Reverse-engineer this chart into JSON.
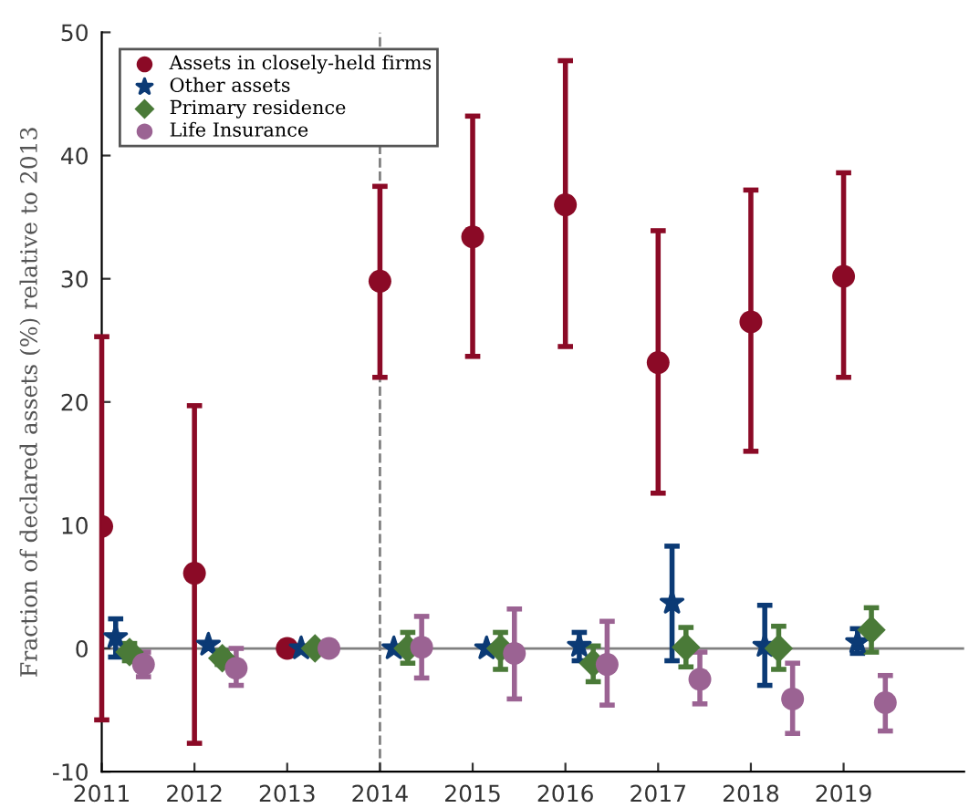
{
  "chart_data": {
    "type": "scatter",
    "ylabel": "Fraction of declared assets (%) relative to 2013",
    "xlim": [
      2011,
      2020.3
    ],
    "xticks": [
      2011,
      2012,
      2013,
      2014,
      2015,
      2016,
      2017,
      2018,
      2019
    ],
    "ylim": [
      -10,
      50
    ],
    "yticks": [
      -10,
      0,
      10,
      20,
      30,
      40,
      50
    ],
    "grid": false,
    "legend": "top left",
    "ref_lines": [
      {
        "axis": "y",
        "value": 0,
        "color": "#808080",
        "line_style": "solid"
      },
      {
        "axis": "x",
        "value": 2014,
        "color": "#808080",
        "line_style": "dashed"
      }
    ],
    "series": [
      {
        "name": "Assets in closely-held firms",
        "color": "#8b0a26",
        "marker": "circle",
        "x": [
          2011,
          2012,
          2013,
          2014,
          2015,
          2016,
          2017,
          2018,
          2019
        ],
        "values": [
          9.9,
          6.1,
          0,
          29.8,
          33.4,
          36.0,
          23.2,
          26.5,
          30.2
        ],
        "errors": [
          [
            -5.8,
            25.3
          ],
          [
            -7.7,
            19.7
          ],
          null,
          [
            22.0,
            37.5
          ],
          [
            23.7,
            43.2
          ],
          [
            24.5,
            47.7
          ],
          [
            12.6,
            33.9
          ],
          [
            16.0,
            37.2
          ],
          [
            22.0,
            38.6
          ]
        ]
      },
      {
        "name": "Other assets",
        "color": "#0b3a75",
        "marker": "star",
        "x": [
          2011.15,
          2012.15,
          2013.15,
          2014.15,
          2015.15,
          2016.15,
          2017.15,
          2018.15,
          2019.15
        ],
        "values": [
          0.9,
          0.3,
          0,
          0,
          0,
          0.2,
          3.7,
          0.2,
          0.5
        ],
        "errors": [
          [
            -0.7,
            2.4
          ],
          null,
          null,
          null,
          null,
          [
            -1.0,
            1.3
          ],
          [
            -1.0,
            8.3
          ],
          [
            -3.0,
            3.5
          ],
          [
            -0.4,
            1.6
          ]
        ]
      },
      {
        "name": "Primary residence",
        "color": "#4a7a38",
        "marker": "diamond",
        "x": [
          2011.3,
          2012.3,
          2013.3,
          2014.3,
          2015.3,
          2016.3,
          2017.3,
          2018.3,
          2019.3
        ],
        "values": [
          -0.3,
          -0.8,
          0,
          0,
          0,
          -1.2,
          0.1,
          0,
          1.5
        ],
        "errors": [
          [
            -1.0,
            0.4
          ],
          [
            -1.3,
            -0.2
          ],
          null,
          [
            -1.2,
            1.3
          ],
          [
            -1.7,
            1.3
          ],
          [
            -2.7,
            0.2
          ],
          [
            -1.5,
            1.7
          ],
          [
            -1.7,
            1.8
          ],
          [
            -0.3,
            3.3
          ]
        ]
      },
      {
        "name": "Life Insurance",
        "color": "#9b6393",
        "marker": "circle",
        "x": [
          2011.45,
          2012.45,
          2013.45,
          2014.45,
          2015.45,
          2016.45,
          2017.45,
          2018.45,
          2019.45
        ],
        "values": [
          -1.3,
          -1.6,
          0,
          0.1,
          -0.4,
          -1.3,
          -2.5,
          -4.1,
          -4.4
        ],
        "errors": [
          [
            -2.3,
            -0.3
          ],
          [
            -3.0,
            0.0
          ],
          null,
          [
            -2.4,
            2.6
          ],
          [
            -4.1,
            3.2
          ],
          [
            -4.6,
            2.2
          ],
          [
            -4.5,
            -0.3
          ],
          [
            -6.9,
            -1.2
          ],
          [
            -6.7,
            -2.2
          ]
        ]
      }
    ]
  }
}
